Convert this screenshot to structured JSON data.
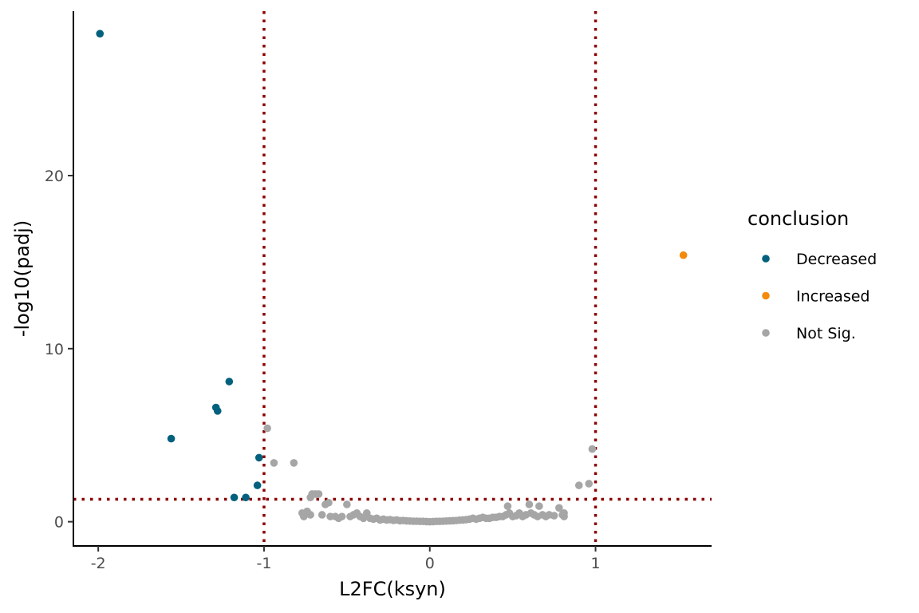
{
  "chart_data": {
    "type": "scatter",
    "title": "",
    "xlabel": "L2FC(ksyn)",
    "ylabel": "-log10(padj)",
    "xlim": [
      -2.15,
      1.7
    ],
    "ylim": [
      -1.4,
      29.5
    ],
    "x_ticks": [
      -2,
      -1,
      0,
      1
    ],
    "x_tick_labels": [
      "-2",
      "-1",
      "0",
      "1"
    ],
    "y_ticks": [
      0,
      10,
      20
    ],
    "y_tick_labels": [
      "0",
      "10",
      "20"
    ],
    "grid": false,
    "legend_position": "right",
    "legend": {
      "title": "conclusion",
      "entries": [
        {
          "name": "Decreased",
          "color": "#03617e"
        },
        {
          "name": "Increased",
          "color": "#f48a0b"
        },
        {
          "name": "Not Sig.",
          "color": "#a6a6a6"
        }
      ]
    },
    "reference_lines": [
      {
        "orientation": "vertical",
        "value": -1,
        "style": "dotted",
        "color": "#8b0000"
      },
      {
        "orientation": "vertical",
        "value": 1,
        "style": "dotted",
        "color": "#8b0000"
      },
      {
        "orientation": "horizontal",
        "value": 1.3,
        "style": "dotted",
        "color": "#8b0000"
      }
    ],
    "series": [
      {
        "name": "Decreased",
        "color": "#03617e",
        "points": [
          [
            -1.99,
            28.2
          ],
          [
            -1.56,
            4.8
          ],
          [
            -1.29,
            6.6
          ],
          [
            -1.28,
            6.4
          ],
          [
            -1.21,
            8.1
          ],
          [
            -1.18,
            1.4
          ],
          [
            -1.11,
            1.4
          ],
          [
            -1.04,
            2.1
          ],
          [
            -1.03,
            3.7
          ]
        ]
      },
      {
        "name": "Increased",
        "color": "#f48a0b",
        "points": [
          [
            1.53,
            15.4
          ]
        ]
      },
      {
        "name": "Not Sig.",
        "color": "#a6a6a6",
        "points": [
          [
            -0.98,
            5.4
          ],
          [
            -0.94,
            3.4
          ],
          [
            -0.82,
            3.4
          ],
          [
            -0.72,
            1.4
          ],
          [
            -0.71,
            1.6
          ],
          [
            -0.69,
            1.6
          ],
          [
            -0.67,
            1.6
          ],
          [
            -0.63,
            1.0
          ],
          [
            -0.61,
            1.1
          ],
          [
            -0.77,
            0.5
          ],
          [
            -0.74,
            0.6
          ],
          [
            -0.76,
            0.3
          ],
          [
            -0.72,
            0.4
          ],
          [
            -0.65,
            0.4
          ],
          [
            -0.6,
            0.3
          ],
          [
            -0.57,
            0.3
          ],
          [
            -0.55,
            0.2
          ],
          [
            -0.53,
            0.3
          ],
          [
            -0.5,
            1.0
          ],
          [
            -0.48,
            0.3
          ],
          [
            -0.46,
            0.4
          ],
          [
            -0.44,
            0.5
          ],
          [
            -0.42,
            0.3
          ],
          [
            -0.4,
            0.2
          ],
          [
            -0.38,
            0.5
          ],
          [
            -0.36,
            0.2
          ],
          [
            -0.34,
            0.15
          ],
          [
            -0.32,
            0.2
          ],
          [
            -0.3,
            0.1
          ],
          [
            -0.28,
            0.15
          ],
          [
            -0.26,
            0.1
          ],
          [
            -0.24,
            0.12
          ],
          [
            -0.22,
            0.08
          ],
          [
            -0.2,
            0.1
          ],
          [
            -0.18,
            0.06
          ],
          [
            -0.16,
            0.07
          ],
          [
            -0.14,
            0.05
          ],
          [
            -0.12,
            0.04
          ],
          [
            -0.1,
            0.03
          ],
          [
            -0.08,
            0.03
          ],
          [
            -0.06,
            0.02
          ],
          [
            -0.04,
            0.02
          ],
          [
            -0.02,
            0.01
          ],
          [
            0.0,
            0.0
          ],
          [
            0.02,
            0.01
          ],
          [
            0.04,
            0.02
          ],
          [
            0.06,
            0.02
          ],
          [
            0.08,
            0.03
          ],
          [
            0.1,
            0.04
          ],
          [
            0.12,
            0.05
          ],
          [
            0.14,
            0.06
          ],
          [
            0.16,
            0.07
          ],
          [
            0.18,
            0.09
          ],
          [
            0.2,
            0.1
          ],
          [
            0.22,
            0.12
          ],
          [
            0.24,
            0.15
          ],
          [
            0.26,
            0.2
          ],
          [
            0.28,
            0.15
          ],
          [
            0.3,
            0.2
          ],
          [
            0.32,
            0.25
          ],
          [
            0.34,
            0.2
          ],
          [
            0.36,
            0.2
          ],
          [
            0.38,
            0.25
          ],
          [
            0.4,
            0.25
          ],
          [
            0.42,
            0.3
          ],
          [
            0.44,
            0.3
          ],
          [
            0.46,
            0.4
          ],
          [
            0.47,
            0.9
          ],
          [
            0.48,
            0.5
          ],
          [
            0.5,
            0.3
          ],
          [
            0.52,
            0.35
          ],
          [
            0.54,
            0.5
          ],
          [
            0.56,
            0.3
          ],
          [
            0.58,
            0.4
          ],
          [
            0.6,
            1.0
          ],
          [
            0.61,
            0.5
          ],
          [
            0.63,
            0.4
          ],
          [
            0.65,
            0.3
          ],
          [
            0.66,
            0.9
          ],
          [
            0.68,
            0.4
          ],
          [
            0.7,
            0.3
          ],
          [
            0.72,
            0.4
          ],
          [
            0.75,
            0.35
          ],
          [
            0.78,
            0.8
          ],
          [
            0.8,
            0.4
          ],
          [
            0.81,
            0.5
          ],
          [
            0.81,
            0.3
          ],
          [
            0.9,
            2.1
          ],
          [
            0.96,
            2.2
          ],
          [
            0.98,
            4.2
          ]
        ]
      }
    ]
  }
}
